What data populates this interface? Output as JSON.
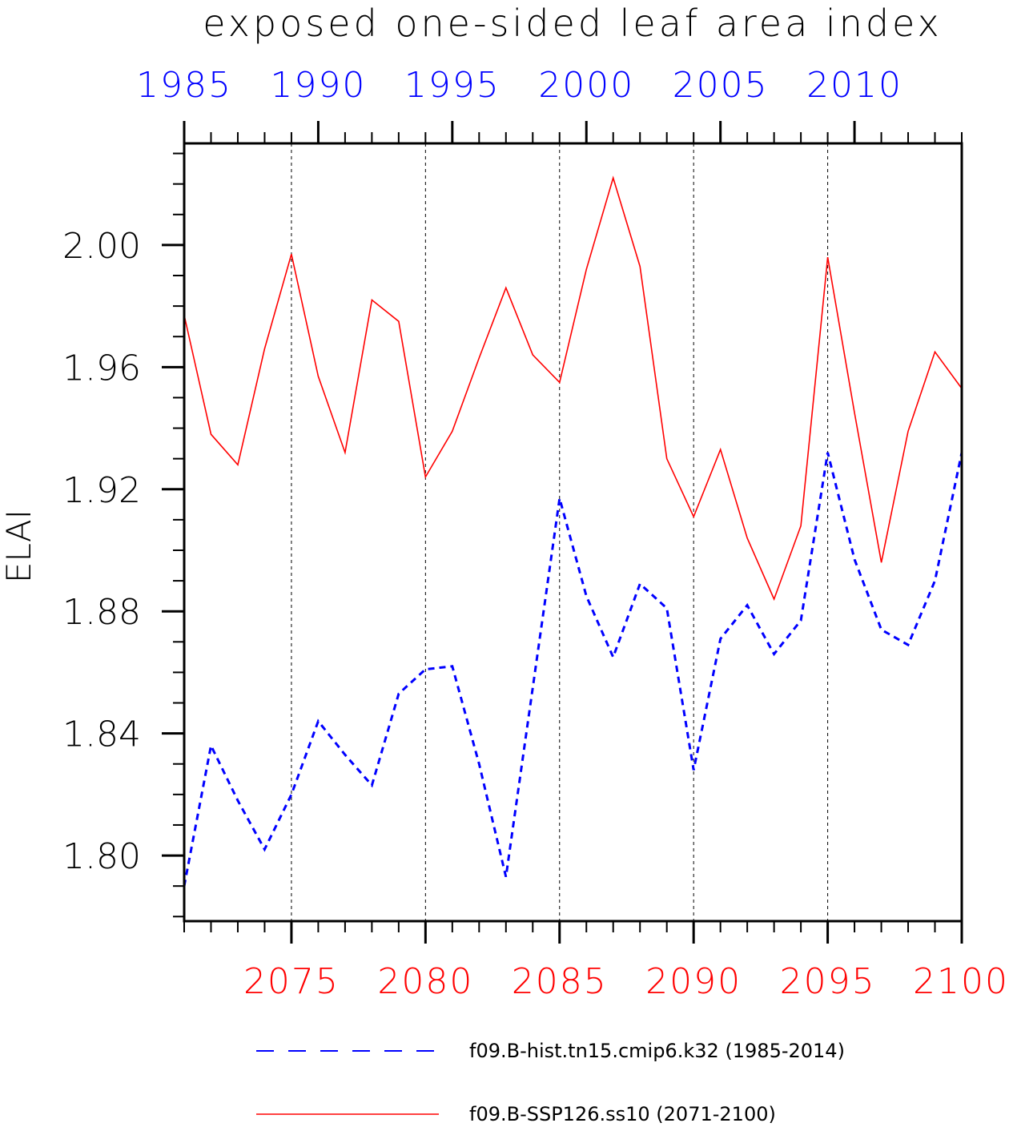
{
  "chart_data": {
    "type": "line",
    "title": "exposed one-sided leaf area index",
    "ylabel": "ELAI",
    "ylim": [
      1.7785,
      2.0333
    ],
    "y_ticks": [
      "1.80",
      "1.84",
      "1.88",
      "1.92",
      "1.96",
      "2.00"
    ],
    "bottom_axis": {
      "range": [
        2071,
        2100
      ],
      "ticks": [
        "2075",
        "2080",
        "2085",
        "2090",
        "2095",
        "2100"
      ],
      "color": "#ff0000"
    },
    "top_axis": {
      "range": [
        1985,
        2014
      ],
      "ticks": [
        "1985",
        "1990",
        "1995",
        "2000",
        "2005",
        "2010"
      ],
      "color": "#0000ff"
    },
    "grid": "vertical dashed at major bottom ticks",
    "legend_position": "bottom",
    "series": [
      {
        "name": "f09.B-hist.tn15.cmip6.k32 (1985-2014)",
        "axis": "top",
        "color": "#0000ff",
        "style": "dashed",
        "x": [
          1985,
          1986,
          1987,
          1988,
          1989,
          1990,
          1991,
          1992,
          1993,
          1994,
          1995,
          1996,
          1997,
          1998,
          1999,
          2000,
          2001,
          2002,
          2003,
          2004,
          2005,
          2006,
          2007,
          2008,
          2009,
          2010,
          2011,
          2012,
          2013,
          2014
        ],
        "values": [
          1.79,
          1.836,
          1.818,
          1.802,
          1.82,
          1.844,
          1.833,
          1.823,
          1.853,
          1.861,
          1.862,
          1.83,
          1.793,
          1.855,
          1.917,
          1.885,
          1.865,
          1.889,
          1.881,
          1.828,
          1.871,
          1.882,
          1.866,
          1.877,
          1.932,
          1.897,
          1.874,
          1.869,
          1.89,
          1.932
        ]
      },
      {
        "name": "f09.B-SSP126.ss10 (2071-2100)",
        "axis": "bottom",
        "color": "#ff0000",
        "style": "solid",
        "x": [
          2071,
          2072,
          2073,
          2074,
          2075,
          2076,
          2077,
          2078,
          2079,
          2080,
          2081,
          2082,
          2083,
          2084,
          2085,
          2086,
          2087,
          2088,
          2089,
          2090,
          2091,
          2092,
          2093,
          2094,
          2095,
          2096,
          2097,
          2098,
          2099,
          2100
        ],
        "values": [
          1.977,
          1.938,
          1.928,
          1.966,
          1.997,
          1.957,
          1.932,
          1.982,
          1.975,
          1.924,
          1.939,
          1.963,
          1.986,
          1.964,
          1.955,
          1.992,
          2.022,
          1.993,
          1.93,
          1.911,
          1.933,
          1.904,
          1.884,
          1.908,
          1.996,
          1.945,
          1.896,
          1.939,
          1.965,
          1.953
        ]
      }
    ]
  }
}
